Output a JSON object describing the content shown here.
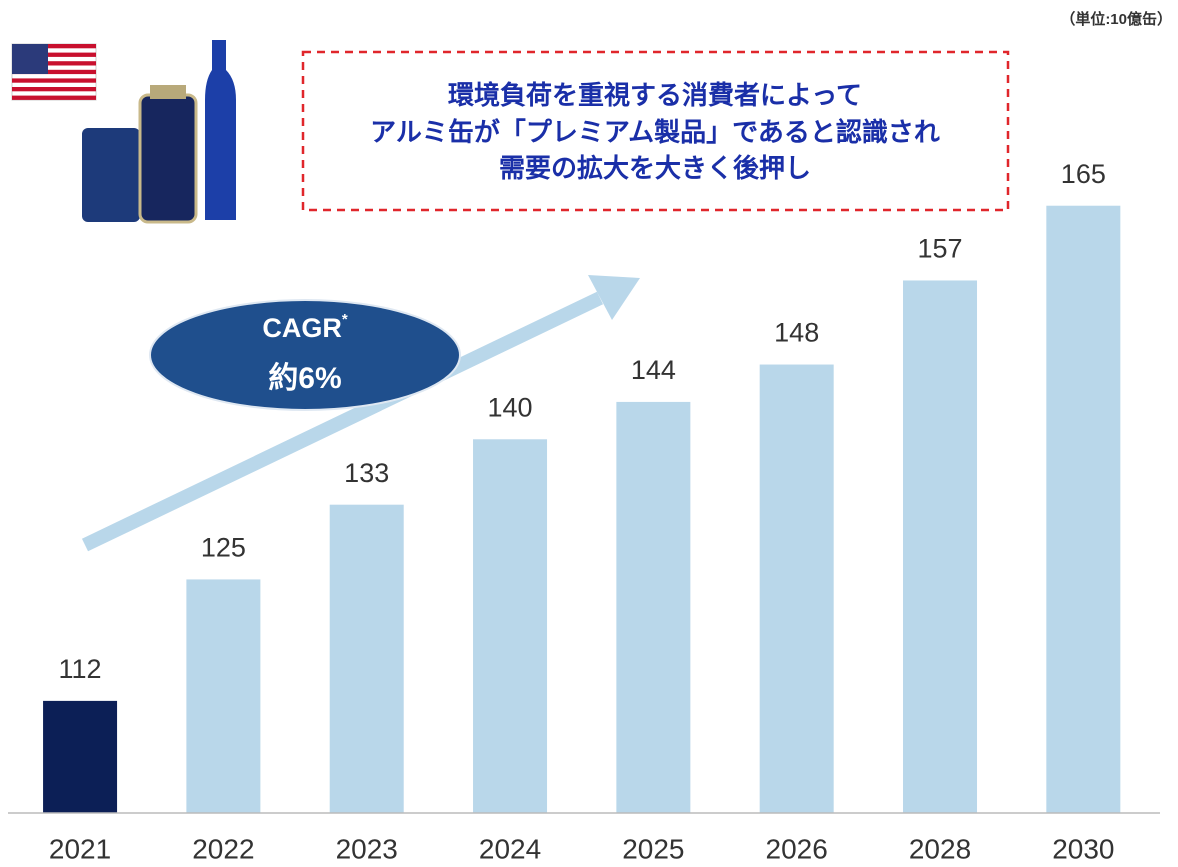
{
  "chart_data": {
    "type": "bar",
    "unit_label": "（単位:10億缶）",
    "annotation": [
      "環境負荷を重視する消費者によって",
      "アルミ缶が「プレミアム製品」であると認識され",
      "需要の拡大を大きく後押し"
    ],
    "cagr_label": "CAGR",
    "cagr_mark": "*",
    "cagr_value": "約6%",
    "categories": [
      "2021",
      "2022",
      "2023",
      "2024",
      "2025",
      "2026",
      "2028",
      "2030"
    ],
    "values": [
      112,
      125,
      133,
      140,
      144,
      148,
      157,
      165
    ],
    "colors": [
      "#0c1f56",
      "#b9d7ea",
      "#b9d7ea",
      "#b9d7ea",
      "#b9d7ea",
      "#b9d7ea",
      "#b9d7ea",
      "#b9d7ea"
    ],
    "ylim": [
      100,
      170
    ]
  }
}
